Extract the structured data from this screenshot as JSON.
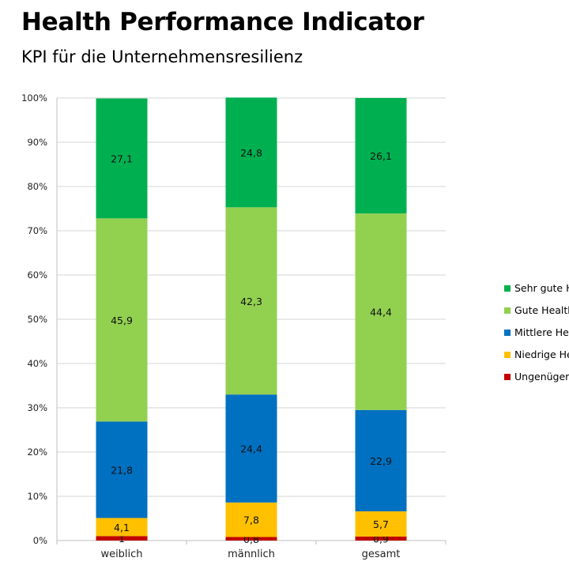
{
  "chart_data": {
    "type": "bar",
    "stacked": true,
    "title": "Health Performance Indicator",
    "subtitle": "KPI für die Unternehmensresilienz",
    "categories": [
      "weiblich",
      "männlich",
      "gesamt"
    ],
    "ylim": [
      0,
      100
    ],
    "y_ticks": [
      "0%",
      "10%",
      "20%",
      "30%",
      "40%",
      "50%",
      "60%",
      "70%",
      "80%",
      "90%",
      "100%"
    ],
    "grid": true,
    "legend_position": "right",
    "series": [
      {
        "name": "Ungenüger",
        "color": "#c00000",
        "values": [
          1,
          0.8,
          0.9
        ],
        "labels": [
          "1",
          "0,8",
          "0,9"
        ]
      },
      {
        "name": "Niedrige He",
        "color": "#ffc000",
        "values": [
          4.1,
          7.8,
          5.7
        ],
        "labels": [
          "4,1",
          "7,8",
          "5,7"
        ]
      },
      {
        "name": "Mittlere He",
        "color": "#0070c0",
        "values": [
          21.8,
          24.4,
          22.9
        ],
        "labels": [
          "21,8",
          "24,4",
          "22,9"
        ]
      },
      {
        "name": "Gute Health",
        "color": "#92d050",
        "values": [
          45.9,
          42.3,
          44.4
        ],
        "labels": [
          "45,9",
          "42,3",
          "44,4"
        ]
      },
      {
        "name": "Sehr gute H",
        "color": "#00b050",
        "values": [
          27.1,
          24.8,
          26.1
        ],
        "labels": [
          "27,1",
          "24,8",
          "26,1"
        ]
      }
    ]
  }
}
